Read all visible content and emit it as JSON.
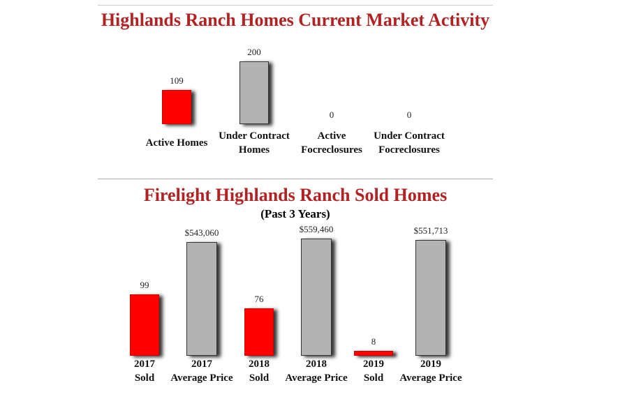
{
  "chart_data": [
    {
      "type": "bar",
      "title": "Highlands Ranch Homes Current Market Activity",
      "categories": [
        "Active Homes",
        "Under Contract Homes",
        "Active Focreclosures",
        "Under Contract Focreclosures"
      ],
      "label_lines": [
        [
          "Active Homes"
        ],
        [
          "Under Contract",
          "Homes"
        ],
        [
          "Active",
          "Focreclosures"
        ],
        [
          "Under Contract",
          "Focreclosures"
        ]
      ],
      "values": [
        109,
        200,
        0,
        0
      ],
      "value_labels": [
        "109",
        "200",
        "0",
        "0"
      ],
      "colors": [
        "#ff0000",
        "#b3b3b3",
        "#b3b3b3",
        "#b3b3b3"
      ]
    },
    {
      "type": "bar",
      "title": "Firelight Highlands Ranch Sold Homes",
      "subtitle": "(Past 3 Years)",
      "categories": [
        "2017 Sold",
        "2017 Average Price",
        "2018 Sold",
        "2018 Average Price",
        "2019 Sold",
        "2019 Average Price"
      ],
      "label_lines": [
        [
          "2017",
          "Sold"
        ],
        [
          "2017",
          "Average Price"
        ],
        [
          "2018",
          "Sold"
        ],
        [
          "2018",
          "Average Price"
        ],
        [
          "2019",
          "Sold"
        ],
        [
          "2019",
          "Average Price"
        ]
      ],
      "values": [
        99,
        543060,
        76,
        559460,
        8,
        551713
      ],
      "value_labels": [
        "99",
        "$543,060",
        "76",
        "$559,460",
        "8",
        "$551,713"
      ],
      "series_kind": [
        "count",
        "price",
        "count",
        "price",
        "count",
        "price"
      ],
      "colors": [
        "#ff0000",
        "#b3b3b3",
        "#ff0000",
        "#b3b3b3",
        "#ff0000",
        "#b3b3b3"
      ]
    }
  ]
}
